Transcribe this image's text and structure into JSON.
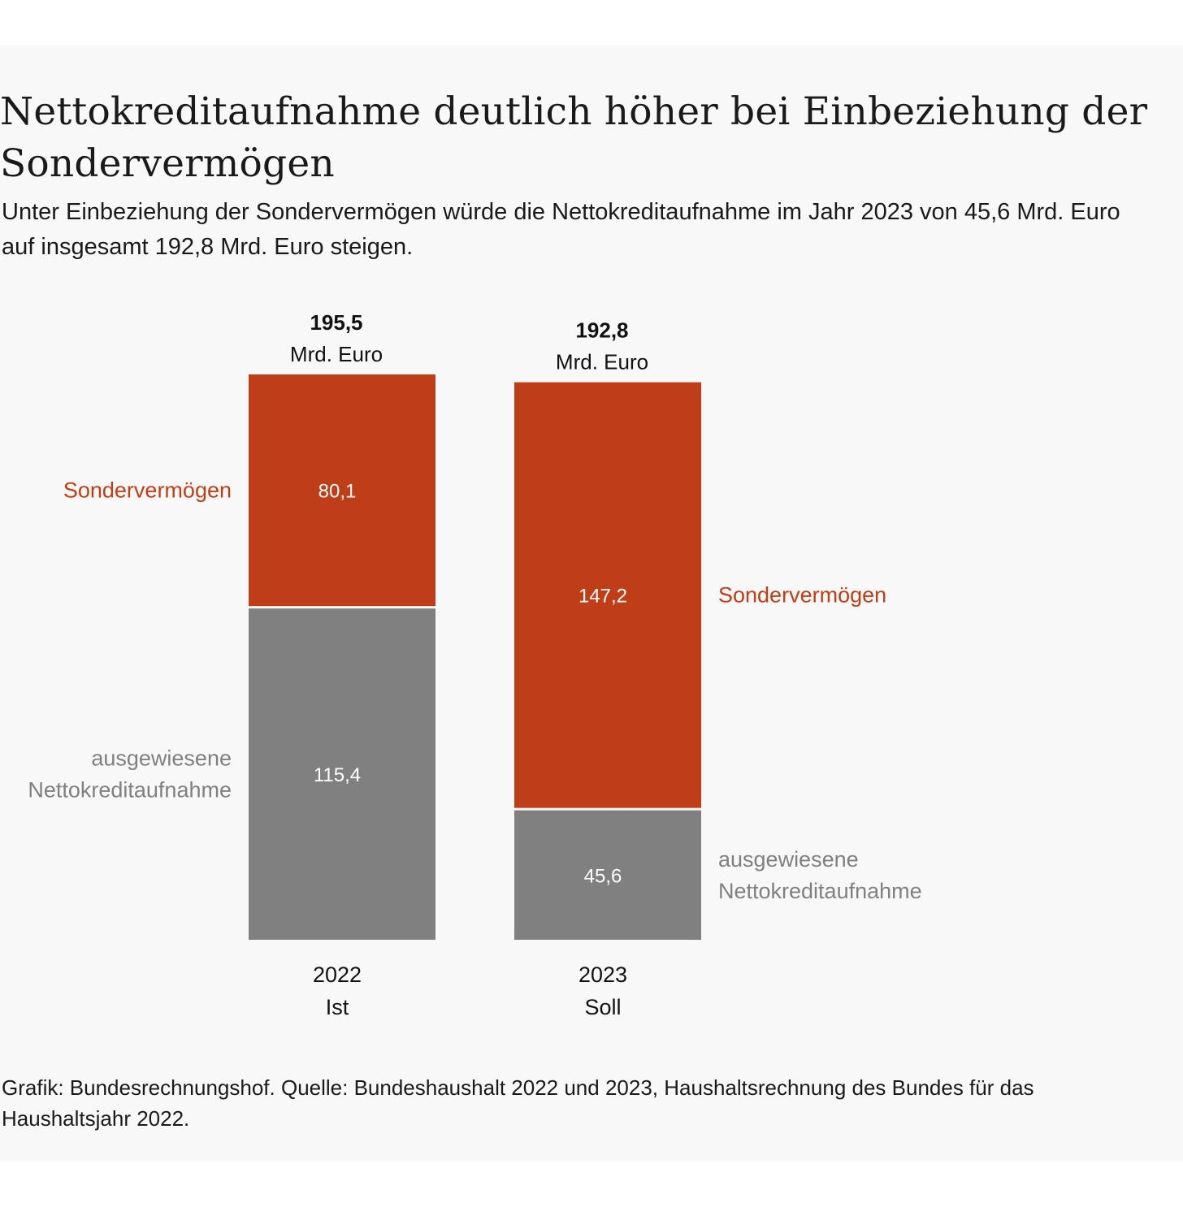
{
  "title": "Nettokreditaufnahme deutlich höher bei Einbeziehung der Sondervermögen",
  "subtitle": "Unter Einbeziehung der Sondervermögen würde die Nettokreditaufnahme im Jahr 2023 von 45,6 Mrd. Euro auf insgesamt 192,8 Mrd. Euro steigen.",
  "source": "Grafik: Bundesrechnungshof. Quelle: Bundeshaushalt 2022 und 2023, Haushaltsrechnung des Bundes für das Haushaltsjahr 2022.",
  "colors": {
    "sondervermoegen": "#c03e17",
    "nettokreditaufnahme": "#808080",
    "background": "#f7f8f7"
  },
  "chart_data": {
    "type": "bar",
    "stacked": true,
    "title": "Nettokreditaufnahme deutlich höher bei Einbeziehung der Sondervermögen",
    "unit": "Mrd. Euro",
    "categories": [
      {
        "year": "2022",
        "label": "Ist"
      },
      {
        "year": "2023",
        "label": "Soll"
      }
    ],
    "totals": [
      {
        "value": 195.5,
        "display": "195,5",
        "unit": "Mrd. Euro"
      },
      {
        "value": 192.8,
        "display": "192,8",
        "unit": "Mrd. Euro"
      }
    ],
    "series": [
      {
        "name": "ausgewiesene Nettokreditaufnahme",
        "name_lines": [
          "ausgewiesene",
          "Nettokreditaufnahme"
        ],
        "color": "#808080",
        "values": [
          115.4,
          45.6
        ],
        "labels": [
          "115,4",
          "45,6"
        ]
      },
      {
        "name": "Sondervermögen",
        "name_lines": [
          "Sondervermögen"
        ],
        "color": "#c03e17",
        "values": [
          80.1,
          147.2
        ],
        "labels": [
          "80,1",
          "147,2"
        ]
      }
    ],
    "legend": "inline, beside bars",
    "ylim": [
      0,
      195.5
    ],
    "grid": false
  }
}
